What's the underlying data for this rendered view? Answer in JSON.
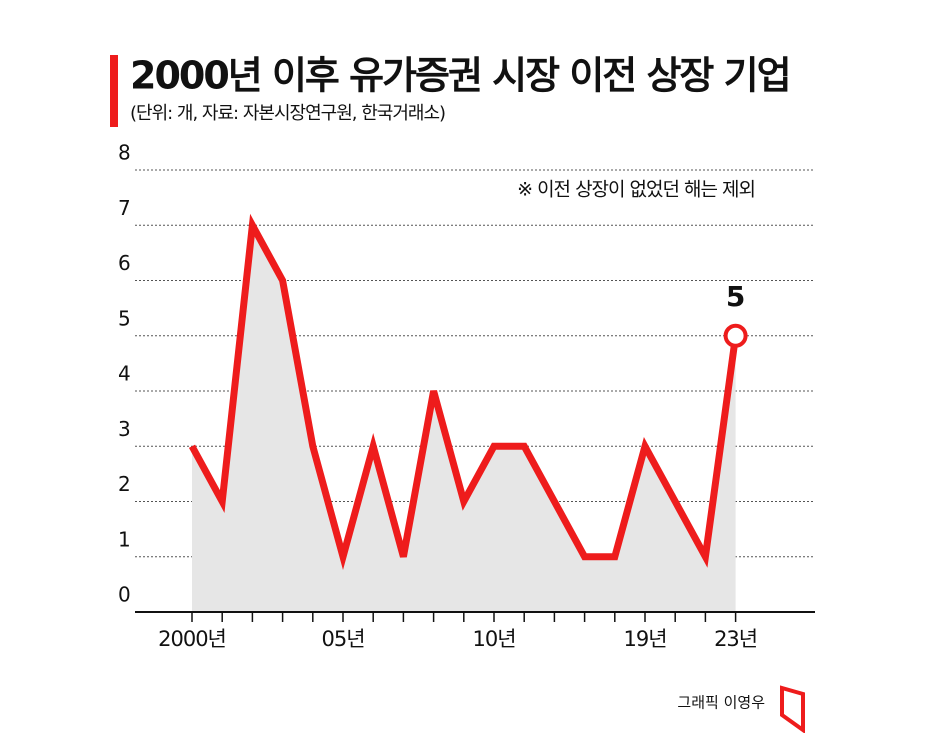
{
  "chart_data": {
    "type": "line",
    "title": "2000년 이후 유가증권 시장 이전 상장 기업",
    "subtitle": "(단위: 개, 자료: 자본시장연구원, 한국거래소)",
    "note": "※ 이전 상장이 없었던 해는 제외",
    "credit": "그래픽 이영우",
    "categories": [
      "2000년",
      null,
      null,
      null,
      null,
      "05년",
      null,
      null,
      null,
      null,
      "10년",
      null,
      null,
      null,
      null,
      "19년",
      null,
      null,
      "23년"
    ],
    "series": [
      {
        "color": "#ee1c1c",
        "values": [
          3,
          2,
          7,
          6,
          3,
          1,
          3,
          1,
          4,
          2,
          3,
          3,
          2,
          1,
          1,
          3,
          2,
          1,
          5
        ]
      }
    ],
    "ylim": [
      0,
      8
    ],
    "yticks": [
      0,
      1,
      2,
      3,
      4,
      5,
      6,
      7,
      8
    ],
    "grid": true,
    "area_color": "#e6e6e6"
  }
}
